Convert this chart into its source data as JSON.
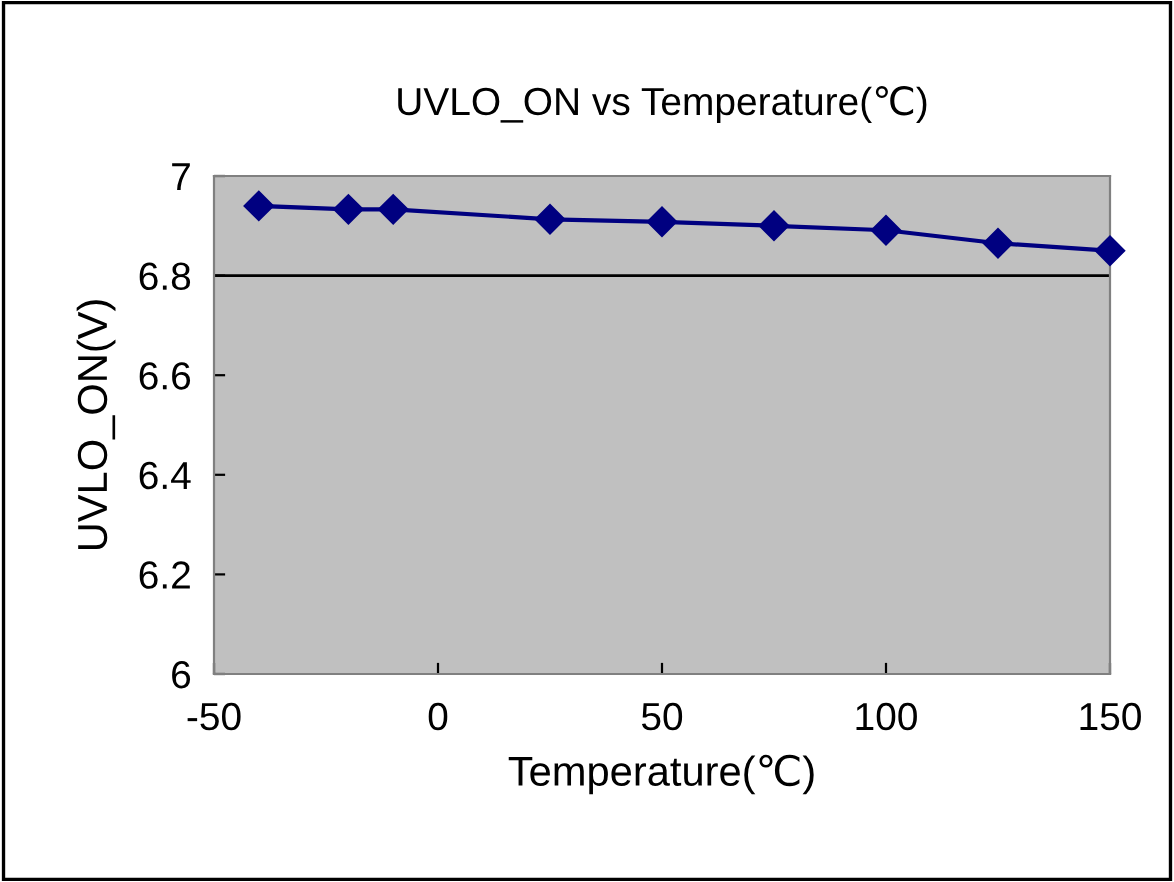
{
  "chart_data": {
    "type": "line",
    "title": "UVLO_ON vs Temperature(℃)",
    "xlabel": "Temperature(℃)",
    "ylabel": "UVLO_ON(V)",
    "x": [
      -40,
      -20,
      -10,
      25,
      50,
      75,
      100,
      125,
      150
    ],
    "series": [
      {
        "color": "#000080",
        "values": [
          6.94,
          6.933,
          6.933,
          6.913,
          6.908,
          6.9,
          6.891,
          6.865,
          6.85
        ]
      }
    ],
    "xlim": [
      -50,
      150
    ],
    "xticks": [
      -50,
      0,
      50,
      100,
      150
    ],
    "ylim": [
      6,
      7
    ],
    "yticks": [
      6,
      6.2,
      6.4,
      6.6,
      6.8,
      7
    ],
    "ref_lines": [
      {
        "axis": "y",
        "value": 6.8,
        "color": "#000000"
      }
    ],
    "grid": false,
    "legend": false,
    "marker": "diamond",
    "line_style": "solid"
  }
}
